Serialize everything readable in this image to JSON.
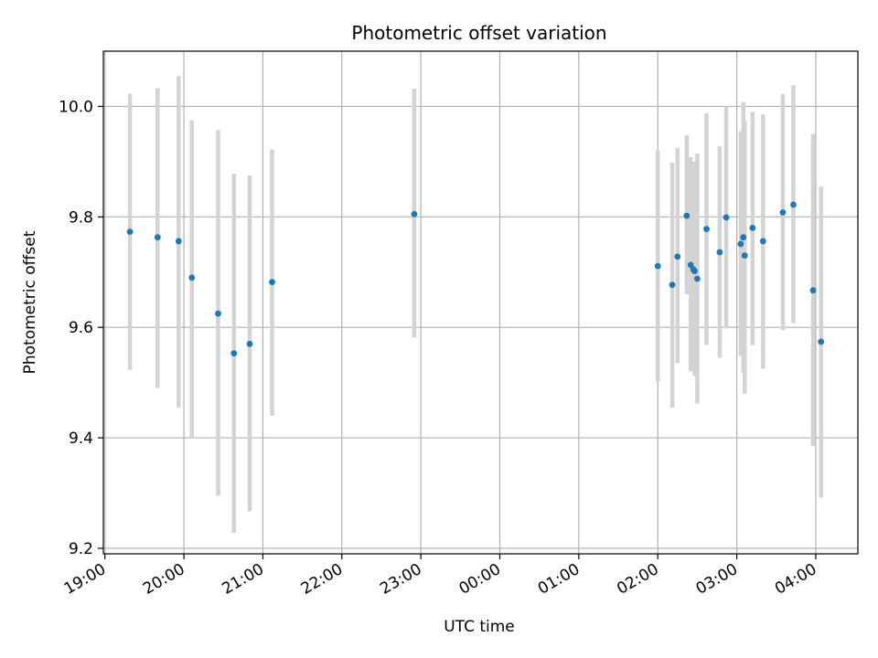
{
  "chart_data": {
    "type": "scatter",
    "title": "Photometric offset variation",
    "xlabel": "UTC time",
    "ylabel": "Photometric offset",
    "xlim": [
      "19:00",
      "04:32"
    ],
    "ylim": [
      9.19,
      10.1
    ],
    "grid": true,
    "x_ticks": [
      "19:00",
      "20:00",
      "21:00",
      "22:00",
      "23:00",
      "00:00",
      "01:00",
      "02:00",
      "03:00",
      "04:00"
    ],
    "y_ticks": [
      "9.2",
      "9.4",
      "9.6",
      "9.8",
      "10.0"
    ],
    "point_color": "#1f77b4",
    "errorbar_color": "#d3d3d3",
    "points": [
      {
        "t": "19:19",
        "y": 9.773,
        "lo": 9.523,
        "hi": 10.023
      },
      {
        "t": "19:40",
        "y": 9.763,
        "lo": 9.49,
        "hi": 10.033
      },
      {
        "t": "19:56",
        "y": 9.756,
        "lo": 9.455,
        "hi": 10.055
      },
      {
        "t": "20:06",
        "y": 9.69,
        "lo": 9.4,
        "hi": 9.975
      },
      {
        "t": "20:26",
        "y": 9.625,
        "lo": 9.295,
        "hi": 9.957
      },
      {
        "t": "20:38",
        "y": 9.553,
        "lo": 9.228,
        "hi": 9.878
      },
      {
        "t": "20:50",
        "y": 9.57,
        "lo": 9.267,
        "hi": 9.875
      },
      {
        "t": "21:07",
        "y": 9.682,
        "lo": 9.44,
        "hi": 9.922
      },
      {
        "t": "22:55",
        "y": 9.805,
        "lo": 9.582,
        "hi": 10.032
      },
      {
        "t": "02:00",
        "y": 9.711,
        "lo": 9.502,
        "hi": 9.92
      },
      {
        "t": "02:11",
        "y": 9.677,
        "lo": 9.455,
        "hi": 9.898
      },
      {
        "t": "02:15",
        "y": 9.728,
        "lo": 9.535,
        "hi": 9.925
      },
      {
        "t": "02:22",
        "y": 9.802,
        "lo": 9.66,
        "hi": 9.948
      },
      {
        "t": "02:25",
        "y": 9.713,
        "lo": 9.52,
        "hi": 9.908
      },
      {
        "t": "02:27",
        "y": 9.705,
        "lo": 9.53,
        "hi": 9.88
      },
      {
        "t": "02:28",
        "y": 9.702,
        "lo": 9.512,
        "hi": 9.9
      },
      {
        "t": "02:30",
        "y": 9.688,
        "lo": 9.462,
        "hi": 9.915
      },
      {
        "t": "02:37",
        "y": 9.778,
        "lo": 9.568,
        "hi": 9.988
      },
      {
        "t": "02:47",
        "y": 9.736,
        "lo": 9.545,
        "hi": 9.928
      },
      {
        "t": "02:52",
        "y": 9.799,
        "lo": 9.598,
        "hi": 10.0
      },
      {
        "t": "03:03",
        "y": 9.751,
        "lo": 9.548,
        "hi": 9.955
      },
      {
        "t": "03:05",
        "y": 9.763,
        "lo": 9.518,
        "hi": 10.008
      },
      {
        "t": "03:06",
        "y": 9.73,
        "lo": 9.48,
        "hi": 9.975
      },
      {
        "t": "03:12",
        "y": 9.78,
        "lo": 9.568,
        "hi": 9.99
      },
      {
        "t": "03:20",
        "y": 9.756,
        "lo": 9.525,
        "hi": 9.985
      },
      {
        "t": "03:35",
        "y": 9.808,
        "lo": 9.595,
        "hi": 10.022
      },
      {
        "t": "03:43",
        "y": 9.822,
        "lo": 9.608,
        "hi": 10.038
      },
      {
        "t": "03:58",
        "y": 9.667,
        "lo": 9.385,
        "hi": 9.95
      },
      {
        "t": "04:04",
        "y": 9.574,
        "lo": 9.292,
        "hi": 9.855
      }
    ]
  }
}
